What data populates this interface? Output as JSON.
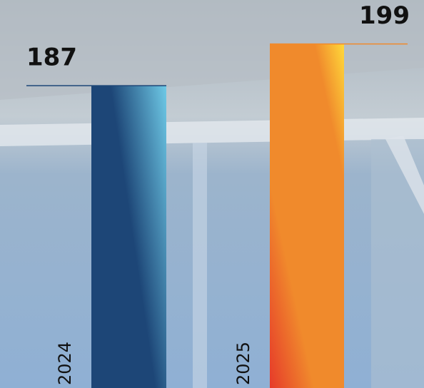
{
  "chart_data": {
    "type": "bar",
    "categories": [
      "2024",
      "2025"
    ],
    "values": [
      187,
      199
    ],
    "colors": [
      "#1d4677",
      "#f08a2c"
    ],
    "ylim": [
      100,
      210
    ]
  }
}
